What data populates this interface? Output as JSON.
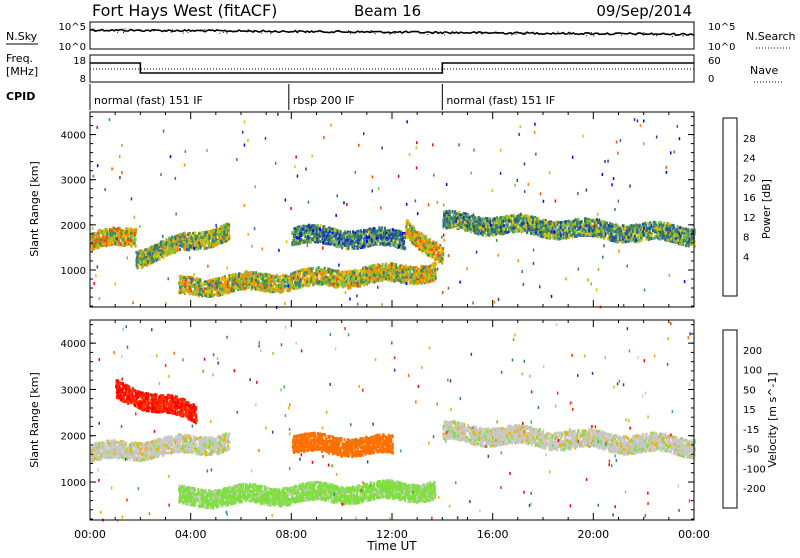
{
  "header": {
    "title": "Fort Hays West (fitACF)",
    "beam": "Beam 16",
    "date": "09/Sep/2014"
  },
  "noise_panel": {
    "left_label": "N.Sky",
    "right_label": "N.Search",
    "left_ticks": [
      "10^5",
      "10^0"
    ],
    "right_ticks": [
      "10^5",
      "10^0"
    ]
  },
  "freq_panel": {
    "left_label_line1": "Freq.",
    "left_label_line2": "[MHz]",
    "right_label": "Nave",
    "left_ticks": [
      "18",
      "8"
    ],
    "right_ticks": [
      "60",
      "0"
    ]
  },
  "cpid": {
    "label": "CPID",
    "segments": [
      {
        "name": "normal (fast) 151 IF",
        "start": 0,
        "end": 7.9
      },
      {
        "name": "rbsp 200 IF",
        "start": 7.9,
        "end": 14.0
      },
      {
        "name": "normal (fast) 151 IF",
        "start": 14.0,
        "end": 24
      }
    ]
  },
  "xaxis": {
    "label": "Time UT",
    "ticks": [
      "00:00",
      "04:00",
      "08:00",
      "12:00",
      "16:00",
      "20:00",
      "00:00"
    ]
  },
  "power_panel": {
    "ylabel": "Slant Range [km]",
    "yticks": [
      "4000",
      "3000",
      "2000",
      "1000"
    ],
    "colorbar_label": "Power [dB]",
    "colorbar_ticks": [
      "28",
      "24",
      "20",
      "16",
      "12",
      "8",
      "4"
    ],
    "colors": [
      "#0000ff",
      "#1f3fa0",
      "#2f6f8f",
      "#3c8c5a",
      "#7fbf3f",
      "#e0c000",
      "#ff9000",
      "#ff5000",
      "#ff0000"
    ]
  },
  "velocity_panel": {
    "ylabel": "Slant Range [km]",
    "yticks": [
      "4000",
      "3000",
      "2000",
      "1000"
    ],
    "colorbar_label": "Velocity [m s^-1]",
    "colorbar_ticks": [
      "200",
      "100",
      "50",
      "15",
      "-15",
      "-50",
      "-100",
      "-200"
    ],
    "colors": [
      "#2a3fb0",
      "#2d7f7f",
      "#3faf4f",
      "#7fdf3f",
      "#c8c8c8",
      "#f0b000",
      "#ff7000",
      "#ff3000",
      "#ff0000"
    ]
  },
  "chart_data": {
    "type": "heatmap",
    "time_range_hours": [
      0,
      24
    ],
    "range_km": [
      180,
      4500
    ],
    "power_bands": [
      {
        "t": [
          0.0,
          1.8
        ],
        "center_km": [
          1650,
          1800
        ],
        "power_db": 22
      },
      {
        "t": [
          1.8,
          5.5
        ],
        "center_km": [
          1300,
          1900
        ],
        "power_db": 18
      },
      {
        "t": [
          3.5,
          13.7
        ],
        "center_km": [
          650,
          1000
        ],
        "power_db": 20
      },
      {
        "t": [
          8.0,
          12.5
        ],
        "center_km": [
          1800,
          1700
        ],
        "power_db": 12
      },
      {
        "t": [
          12.5,
          14.0
        ],
        "center_km": [
          2000,
          1300
        ],
        "power_db": 22
      },
      {
        "t": [
          14.0,
          24.0
        ],
        "center_km": [
          2100,
          1800
        ],
        "power_db": 14
      }
    ],
    "velocity_bands": [
      {
        "t": [
          1.0,
          4.2
        ],
        "center_km": [
          3000,
          2500
        ],
        "velocity_ms": -200
      },
      {
        "t": [
          0.0,
          5.5
        ],
        "center_km": [
          1650,
          1900
        ],
        "velocity_ms": 0
      },
      {
        "t": [
          3.5,
          13.7
        ],
        "center_km": [
          700,
          850
        ],
        "velocity_ms": 30
      },
      {
        "t": [
          8.0,
          12.0
        ],
        "center_km": [
          1850,
          1800
        ],
        "velocity_ms": -80
      },
      {
        "t": [
          14.0,
          24.0
        ],
        "center_km": [
          2100,
          1800
        ],
        "velocity_ms": 0
      }
    ]
  }
}
